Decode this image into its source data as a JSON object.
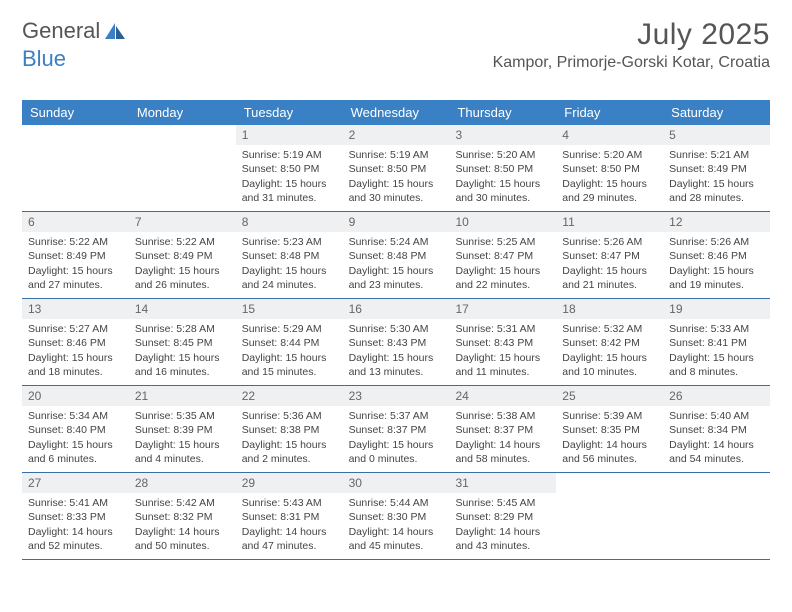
{
  "brand": {
    "part1": "General",
    "part2": "Blue"
  },
  "header": {
    "month_title": "July 2025",
    "location": "Kampor, Primorje-Gorski Kotar, Croatia"
  },
  "colors": {
    "header_bg": "#3a80c4",
    "header_fg": "#ffffff",
    "daynum_bg": "#eef0f2",
    "row_border": "#3a6fa5",
    "text": "#444444"
  },
  "day_names": [
    "Sunday",
    "Monday",
    "Tuesday",
    "Wednesday",
    "Thursday",
    "Friday",
    "Saturday"
  ],
  "weeks": [
    [
      null,
      null,
      {
        "n": "1",
        "sr": "Sunrise: 5:19 AM",
        "ss": "Sunset: 8:50 PM",
        "dl": "Daylight: 15 hours and 31 minutes."
      },
      {
        "n": "2",
        "sr": "Sunrise: 5:19 AM",
        "ss": "Sunset: 8:50 PM",
        "dl": "Daylight: 15 hours and 30 minutes."
      },
      {
        "n": "3",
        "sr": "Sunrise: 5:20 AM",
        "ss": "Sunset: 8:50 PM",
        "dl": "Daylight: 15 hours and 30 minutes."
      },
      {
        "n": "4",
        "sr": "Sunrise: 5:20 AM",
        "ss": "Sunset: 8:50 PM",
        "dl": "Daylight: 15 hours and 29 minutes."
      },
      {
        "n": "5",
        "sr": "Sunrise: 5:21 AM",
        "ss": "Sunset: 8:49 PM",
        "dl": "Daylight: 15 hours and 28 minutes."
      }
    ],
    [
      {
        "n": "6",
        "sr": "Sunrise: 5:22 AM",
        "ss": "Sunset: 8:49 PM",
        "dl": "Daylight: 15 hours and 27 minutes."
      },
      {
        "n": "7",
        "sr": "Sunrise: 5:22 AM",
        "ss": "Sunset: 8:49 PM",
        "dl": "Daylight: 15 hours and 26 minutes."
      },
      {
        "n": "8",
        "sr": "Sunrise: 5:23 AM",
        "ss": "Sunset: 8:48 PM",
        "dl": "Daylight: 15 hours and 24 minutes."
      },
      {
        "n": "9",
        "sr": "Sunrise: 5:24 AM",
        "ss": "Sunset: 8:48 PM",
        "dl": "Daylight: 15 hours and 23 minutes."
      },
      {
        "n": "10",
        "sr": "Sunrise: 5:25 AM",
        "ss": "Sunset: 8:47 PM",
        "dl": "Daylight: 15 hours and 22 minutes."
      },
      {
        "n": "11",
        "sr": "Sunrise: 5:26 AM",
        "ss": "Sunset: 8:47 PM",
        "dl": "Daylight: 15 hours and 21 minutes."
      },
      {
        "n": "12",
        "sr": "Sunrise: 5:26 AM",
        "ss": "Sunset: 8:46 PM",
        "dl": "Daylight: 15 hours and 19 minutes."
      }
    ],
    [
      {
        "n": "13",
        "sr": "Sunrise: 5:27 AM",
        "ss": "Sunset: 8:46 PM",
        "dl": "Daylight: 15 hours and 18 minutes."
      },
      {
        "n": "14",
        "sr": "Sunrise: 5:28 AM",
        "ss": "Sunset: 8:45 PM",
        "dl": "Daylight: 15 hours and 16 minutes."
      },
      {
        "n": "15",
        "sr": "Sunrise: 5:29 AM",
        "ss": "Sunset: 8:44 PM",
        "dl": "Daylight: 15 hours and 15 minutes."
      },
      {
        "n": "16",
        "sr": "Sunrise: 5:30 AM",
        "ss": "Sunset: 8:43 PM",
        "dl": "Daylight: 15 hours and 13 minutes."
      },
      {
        "n": "17",
        "sr": "Sunrise: 5:31 AM",
        "ss": "Sunset: 8:43 PM",
        "dl": "Daylight: 15 hours and 11 minutes."
      },
      {
        "n": "18",
        "sr": "Sunrise: 5:32 AM",
        "ss": "Sunset: 8:42 PM",
        "dl": "Daylight: 15 hours and 10 minutes."
      },
      {
        "n": "19",
        "sr": "Sunrise: 5:33 AM",
        "ss": "Sunset: 8:41 PM",
        "dl": "Daylight: 15 hours and 8 minutes."
      }
    ],
    [
      {
        "n": "20",
        "sr": "Sunrise: 5:34 AM",
        "ss": "Sunset: 8:40 PM",
        "dl": "Daylight: 15 hours and 6 minutes."
      },
      {
        "n": "21",
        "sr": "Sunrise: 5:35 AM",
        "ss": "Sunset: 8:39 PM",
        "dl": "Daylight: 15 hours and 4 minutes."
      },
      {
        "n": "22",
        "sr": "Sunrise: 5:36 AM",
        "ss": "Sunset: 8:38 PM",
        "dl": "Daylight: 15 hours and 2 minutes."
      },
      {
        "n": "23",
        "sr": "Sunrise: 5:37 AM",
        "ss": "Sunset: 8:37 PM",
        "dl": "Daylight: 15 hours and 0 minutes."
      },
      {
        "n": "24",
        "sr": "Sunrise: 5:38 AM",
        "ss": "Sunset: 8:37 PM",
        "dl": "Daylight: 14 hours and 58 minutes."
      },
      {
        "n": "25",
        "sr": "Sunrise: 5:39 AM",
        "ss": "Sunset: 8:35 PM",
        "dl": "Daylight: 14 hours and 56 minutes."
      },
      {
        "n": "26",
        "sr": "Sunrise: 5:40 AM",
        "ss": "Sunset: 8:34 PM",
        "dl": "Daylight: 14 hours and 54 minutes."
      }
    ],
    [
      {
        "n": "27",
        "sr": "Sunrise: 5:41 AM",
        "ss": "Sunset: 8:33 PM",
        "dl": "Daylight: 14 hours and 52 minutes."
      },
      {
        "n": "28",
        "sr": "Sunrise: 5:42 AM",
        "ss": "Sunset: 8:32 PM",
        "dl": "Daylight: 14 hours and 50 minutes."
      },
      {
        "n": "29",
        "sr": "Sunrise: 5:43 AM",
        "ss": "Sunset: 8:31 PM",
        "dl": "Daylight: 14 hours and 47 minutes."
      },
      {
        "n": "30",
        "sr": "Sunrise: 5:44 AM",
        "ss": "Sunset: 8:30 PM",
        "dl": "Daylight: 14 hours and 45 minutes."
      },
      {
        "n": "31",
        "sr": "Sunrise: 5:45 AM",
        "ss": "Sunset: 8:29 PM",
        "dl": "Daylight: 14 hours and 43 minutes."
      },
      null,
      null
    ]
  ]
}
